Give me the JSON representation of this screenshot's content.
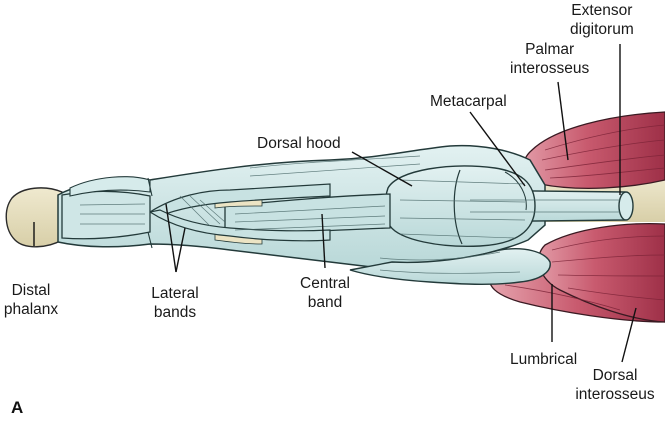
{
  "figure": {
    "panel_letter": "A",
    "labels": {
      "extensor_digitorum_line1": "Extensor",
      "extensor_digitorum_line2": "digitorum",
      "palmar_interosseus_line1": "Palmar",
      "palmar_interosseus_line2": "interosseus",
      "metacarpal": "Metacarpal",
      "dorsal_hood": "Dorsal hood",
      "distal_phalanx_line1": "Distal",
      "distal_phalanx_line2": "phalanx",
      "lateral_bands_line1": "Lateral",
      "lateral_bands_line2": "bands",
      "central_band_line1": "Central",
      "central_band_line2": "band",
      "lumbrical": "Lumbrical",
      "dorsal_interosseus_line1": "Dorsal",
      "dorsal_interosseus_line2": "interosseus"
    },
    "colors": {
      "tendon_fill": "#cfe6e6",
      "tendon_outline": "#233a3a",
      "bone_fill": "#e6dfbf",
      "muscle_fill": "#c85a6e",
      "muscle_dark": "#9e3048",
      "leader_line": "#111111"
    }
  }
}
